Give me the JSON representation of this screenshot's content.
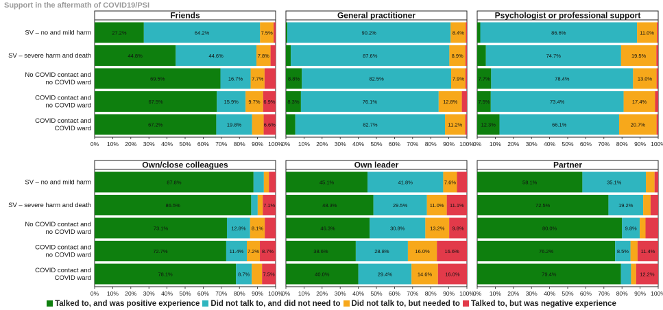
{
  "title": "Support in the aftermath of COVID19/PSI",
  "colors": {
    "positive": "#0e7f0e",
    "no_need": "#2fb5bf",
    "needed": "#f7a81b",
    "negative": "#e23a4a"
  },
  "legend": [
    {
      "key": "positive",
      "label": "Talked to, and was positive experience"
    },
    {
      "key": "no_need",
      "label": "Did not talk to, and did not need to"
    },
    {
      "key": "needed",
      "label": "Did not talk to, but needed to"
    },
    {
      "key": "negative",
      "label": "Talked to, but was negative experience"
    }
  ],
  "chart_data": {
    "type": "bar",
    "orientation": "horizontal-stacked-100",
    "categories": [
      "SV – no and mild harm",
      "SV – severe harm and death",
      "No COVID contact and\nno COVID ward",
      "COVID contact and\nno COVID ward",
      "COVID contact and\nCOVID ward"
    ],
    "xticks": [
      "0%",
      "10%",
      "20%",
      "30%",
      "40%",
      "50%",
      "60%",
      "70%",
      "80%",
      "90%",
      "100%"
    ],
    "xlim": [
      0,
      100
    ],
    "series_order": [
      "positive",
      "no_need",
      "needed",
      "negative"
    ],
    "panels": [
      {
        "title": "Friends",
        "rows": [
          {
            "values": [
              27.2,
              64.2,
              7.5,
              1.1
            ],
            "labels": [
              "27.2%",
              "64.2%",
              "7.5%",
              ""
            ]
          },
          {
            "values": [
              44.8,
              44.6,
              7.8,
              2.8
            ],
            "labels": [
              "44.8%",
              "44.6%",
              "7.8%",
              ""
            ]
          },
          {
            "values": [
              69.5,
              16.7,
              7.7,
              6.1
            ],
            "labels": [
              "69.5%",
              "16.7%",
              "7.7%",
              ""
            ]
          },
          {
            "values": [
              67.5,
              15.9,
              9.7,
              6.9
            ],
            "labels": [
              "67.5%",
              "15.9%",
              "9.7%",
              "6.9%"
            ]
          },
          {
            "values": [
              67.2,
              19.8,
              6.4,
              6.6
            ],
            "labels": [
              "67.2%",
              "19.8%",
              "",
              "6.6%"
            ]
          }
        ]
      },
      {
        "title": "General practitioner",
        "rows": [
          {
            "values": [
              0.8,
              90.2,
              8.4,
              0.6
            ],
            "labels": [
              "",
              "90.2%",
              "8.4%",
              ""
            ]
          },
          {
            "values": [
              2.7,
              87.6,
              8.9,
              0.8
            ],
            "labels": [
              "",
              "87.6%",
              "8.9%",
              ""
            ]
          },
          {
            "values": [
              8.8,
              82.5,
              7.9,
              0.8
            ],
            "labels": [
              "8.8%",
              "82.5%",
              "7.9%",
              ""
            ]
          },
          {
            "values": [
              8.3,
              76.1,
              12.8,
              2.8
            ],
            "labels": [
              "8.3%",
              "76.1%",
              "12.8%",
              ""
            ]
          },
          {
            "values": [
              5.2,
              82.7,
              11.2,
              0.9
            ],
            "labels": [
              "",
              "82.7%",
              "11.2%",
              ""
            ]
          }
        ]
      },
      {
        "title": "Psychologist or professional support",
        "rows": [
          {
            "values": [
              1.7,
              86.6,
              11.0,
              0.7
            ],
            "labels": [
              "",
              "86.6%",
              "11.0%",
              ""
            ]
          },
          {
            "values": [
              4.8,
              74.7,
              19.5,
              1.0
            ],
            "labels": [
              "",
              "74.7%",
              "19.5%",
              ""
            ]
          },
          {
            "values": [
              7.7,
              78.4,
              13.0,
              0.9
            ],
            "labels": [
              "7.7%",
              "78.4%",
              "13.0%",
              ""
            ]
          },
          {
            "values": [
              7.5,
              73.4,
              17.4,
              1.7
            ],
            "labels": [
              "7.5%",
              "73.4%",
              "17.4%",
              ""
            ]
          },
          {
            "values": [
              12.3,
              66.1,
              20.7,
              0.9
            ],
            "labels": [
              "12.3%",
              "66.1%",
              "20.7%",
              ""
            ]
          }
        ]
      },
      {
        "title": "Own/close colleagues",
        "rows": [
          {
            "values": [
              87.8,
              5.7,
              2.8,
              3.7
            ],
            "labels": [
              "87.8%",
              "",
              "",
              ""
            ]
          },
          {
            "values": [
              86.5,
              3.6,
              2.8,
              7.1
            ],
            "labels": [
              "86.5%",
              "",
              "",
              "7.1%"
            ]
          },
          {
            "values": [
              73.1,
              12.8,
              8.1,
              6.0
            ],
            "labels": [
              "73.1%",
              "12.8%",
              "8.1%",
              ""
            ]
          },
          {
            "values": [
              72.7,
              11.4,
              7.2,
              8.7
            ],
            "labels": [
              "72.7%",
              "11.4%",
              "7.2%",
              "8.7%"
            ]
          },
          {
            "values": [
              78.1,
              8.7,
              5.7,
              7.5
            ],
            "labels": [
              "78.1%",
              "8.7%",
              "",
              "7.5%"
            ]
          }
        ]
      },
      {
        "title": "Own leader",
        "rows": [
          {
            "values": [
              45.1,
              41.8,
              7.6,
              5.5
            ],
            "labels": [
              "45.1%",
              "41.8%",
              "7.6%",
              ""
            ]
          },
          {
            "values": [
              48.3,
              29.5,
              11.0,
              11.1
            ],
            "labels": [
              "48.3%",
              "29.5%",
              "11.0%",
              "11.1%"
            ]
          },
          {
            "values": [
              46.3,
              30.8,
              13.2,
              9.8
            ],
            "labels": [
              "46.3%",
              "30.8%",
              "13.2%",
              "9.8%"
            ]
          },
          {
            "values": [
              38.6,
              28.8,
              16.0,
              16.6
            ],
            "labels": [
              "38.6%",
              "28.8%",
              "16.0%",
              "16.6%"
            ]
          },
          {
            "values": [
              40.0,
              29.4,
              14.6,
              16.0
            ],
            "labels": [
              "40.0%",
              "29.4%",
              "14.6%",
              "16.0%"
            ]
          }
        ]
      },
      {
        "title": "Partner",
        "rows": [
          {
            "values": [
              58.1,
              35.1,
              4.8,
              2.0
            ],
            "labels": [
              "58.1%",
              "35.1%",
              "",
              ""
            ]
          },
          {
            "values": [
              72.5,
              19.2,
              4.1,
              4.2
            ],
            "labels": [
              "72.5%",
              "19.2%",
              "",
              ""
            ]
          },
          {
            "values": [
              80.0,
              9.8,
              3.2,
              7.0
            ],
            "labels": [
              "80.0%",
              "9.8%",
              "",
              ""
            ]
          },
          {
            "values": [
              76.2,
              8.5,
              3.9,
              11.4
            ],
            "labels": [
              "76.2%",
              "8.5%",
              "",
              "11.4%"
            ]
          },
          {
            "values": [
              79.4,
              5.6,
              2.8,
              12.2
            ],
            "labels": [
              "79.4%",
              "",
              "",
              "12.2%"
            ]
          }
        ]
      }
    ]
  }
}
